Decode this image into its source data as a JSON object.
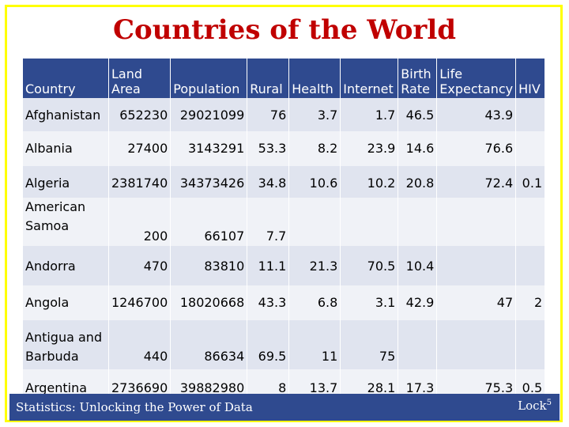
{
  "slide": {
    "title": "Countries of the World",
    "footer_left": "Statistics: Unlocking the Power of Data",
    "footer_right": "Lock",
    "footer_right_sup": "5"
  },
  "table": {
    "headers": [
      {
        "line1": "",
        "line2": "Country"
      },
      {
        "line1": "Land",
        "line2": "Area"
      },
      {
        "line1": "",
        "line2": "Population"
      },
      {
        "line1": "",
        "line2": "Rural"
      },
      {
        "line1": "",
        "line2": "Health"
      },
      {
        "line1": "",
        "line2": "Internet"
      },
      {
        "line1": "Birth",
        "line2": "Rate"
      },
      {
        "line1": "Life",
        "line2": "Expectancy"
      },
      {
        "line1": "",
        "line2": "HIV"
      }
    ],
    "rows": [
      {
        "country": "Afghanistan",
        "land_area": "652230",
        "population": "29021099",
        "rural": "76",
        "health": "3.7",
        "internet": "1.7",
        "birth_rate": "46.5",
        "life_expectancy": "43.9",
        "hiv": ""
      },
      {
        "country": "Albania",
        "land_area": "27400",
        "population": "3143291",
        "rural": "53.3",
        "health": "8.2",
        "internet": "23.9",
        "birth_rate": "14.6",
        "life_expectancy": "76.6",
        "hiv": ""
      },
      {
        "country": "Algeria",
        "land_area": "2381740",
        "population": "34373426",
        "rural": "34.8",
        "health": "10.6",
        "internet": "10.2",
        "birth_rate": "20.8",
        "life_expectancy": "72.4",
        "hiv": "0.1"
      },
      {
        "country": "American Samoa",
        "land_area": "200",
        "population": "66107",
        "rural": "7.7",
        "health": "",
        "internet": "",
        "birth_rate": "",
        "life_expectancy": "",
        "hiv": ""
      },
      {
        "country": "Andorra",
        "land_area": "470",
        "population": "83810",
        "rural": "11.1",
        "health": "21.3",
        "internet": "70.5",
        "birth_rate": "10.4",
        "life_expectancy": "",
        "hiv": ""
      },
      {
        "country": "Angola",
        "land_area": "1246700",
        "population": "18020668",
        "rural": "43.3",
        "health": "6.8",
        "internet": "3.1",
        "birth_rate": "42.9",
        "life_expectancy": "47",
        "hiv": "2"
      },
      {
        "country": "Antigua and Barbuda",
        "land_area": "440",
        "population": "86634",
        "rural": "69.5",
        "health": "11",
        "internet": "75",
        "birth_rate": "",
        "life_expectancy": "",
        "hiv": ""
      },
      {
        "country": "Argentina",
        "land_area": "2736690",
        "population": "39882980",
        "rural": "8",
        "health": "13.7",
        "internet": "28.1",
        "birth_rate": "17.3",
        "life_expectancy": "75.3",
        "hiv": "0.5"
      }
    ]
  }
}
